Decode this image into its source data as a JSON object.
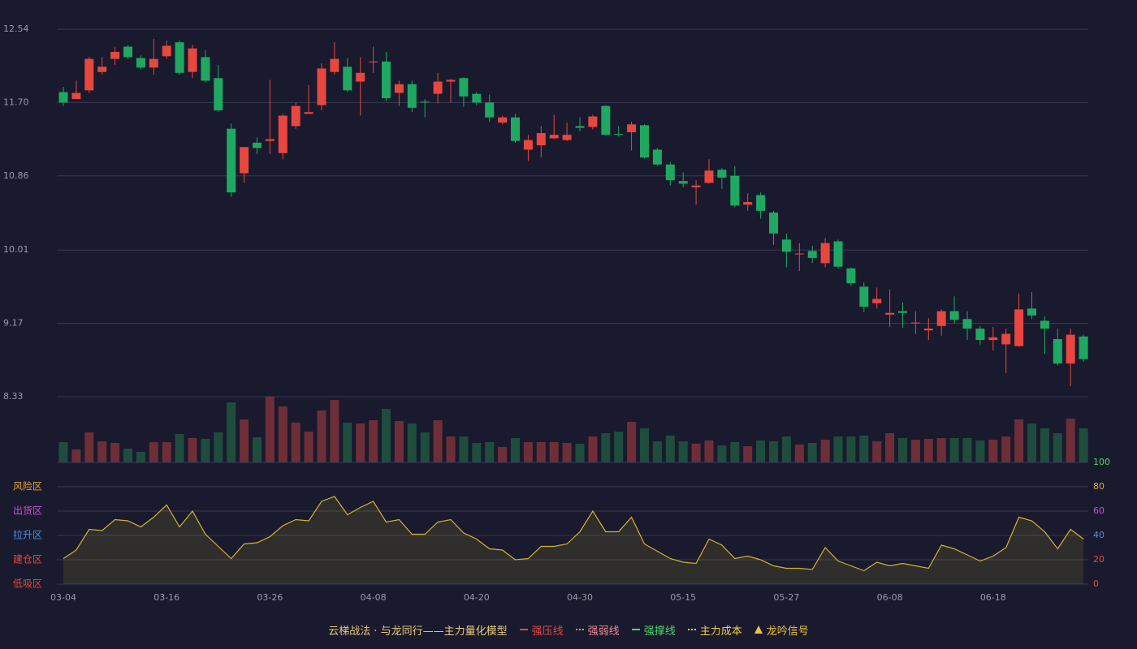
{
  "chart_data": [
    {
      "type": "candlestick",
      "categories": [
        "03-04",
        null,
        null,
        null,
        null,
        null,
        null,
        null,
        "03-16",
        null,
        null,
        null,
        null,
        null,
        null,
        null,
        "03-26",
        null,
        null,
        null,
        null,
        null,
        null,
        null,
        "04-08",
        null,
        null,
        null,
        null,
        null,
        null,
        null,
        "04-20",
        null,
        null,
        null,
        null,
        null,
        null,
        null,
        "04-30",
        null,
        null,
        null,
        null,
        null,
        null,
        null,
        "05-15",
        null,
        null,
        null,
        null,
        null,
        null,
        null,
        "05-27",
        null,
        null,
        null,
        null,
        null,
        null,
        null,
        "06-08",
        null,
        null,
        null,
        null,
        null,
        null,
        null,
        "06-18",
        null,
        null,
        null,
        null,
        null,
        null,
        null
      ],
      "open": [
        11.82,
        11.74,
        11.84,
        12.05,
        12.2,
        12.34,
        12.21,
        12.1,
        12.23,
        12.39,
        12.05,
        12.22,
        11.98,
        11.4,
        10.89,
        11.24,
        11.26,
        11.12,
        11.43,
        11.57,
        11.67,
        12.05,
        12.11,
        11.94,
        12.16,
        12.17,
        11.81,
        11.91,
        11.71,
        11.8,
        11.94,
        11.98,
        11.8,
        11.7,
        11.47,
        11.53,
        11.16,
        11.21,
        11.29,
        11.27,
        11.43,
        11.42,
        11.66,
        11.34,
        11.36,
        11.44,
        11.16,
        10.99,
        10.8,
        10.73,
        10.78,
        10.93,
        10.86,
        10.53,
        10.64,
        10.44,
        10.13,
        9.96,
        10.0,
        9.86,
        10.11,
        9.8,
        9.59,
        9.4,
        9.27,
        9.31,
        9.17,
        9.09,
        9.14,
        9.31,
        9.22,
        9.11,
        8.98,
        8.93,
        8.91,
        9.34,
        9.2,
        8.99,
        8.71,
        9.02
      ],
      "high": [
        11.88,
        11.95,
        12.22,
        12.22,
        12.34,
        12.36,
        12.24,
        12.43,
        12.41,
        12.41,
        12.36,
        12.3,
        12.13,
        11.46,
        11.19,
        11.3,
        11.96,
        11.57,
        11.7,
        11.9,
        12.15,
        12.39,
        12.21,
        12.22,
        12.34,
        12.28,
        11.95,
        11.95,
        11.74,
        12.04,
        11.97,
        11.99,
        11.82,
        11.79,
        11.55,
        11.57,
        11.33,
        11.43,
        11.56,
        11.47,
        11.53,
        11.56,
        11.67,
        11.43,
        11.48,
        11.45,
        11.18,
        11.02,
        10.9,
        10.81,
        11.05,
        10.95,
        10.97,
        10.66,
        10.67,
        10.46,
        10.2,
        10.09,
        10.06,
        10.15,
        10.13,
        9.81,
        9.64,
        9.58,
        9.56,
        9.41,
        9.31,
        9.23,
        9.33,
        9.48,
        9.31,
        9.14,
        9.13,
        9.11,
        9.51,
        9.53,
        9.25,
        9.11,
        9.11,
        9.04
      ],
      "low": [
        11.66,
        11.74,
        11.81,
        12.02,
        12.13,
        12.2,
        12.08,
        12.02,
        12.2,
        12.02,
        11.98,
        11.93,
        11.59,
        10.62,
        10.78,
        11.11,
        11.11,
        11.05,
        11.4,
        11.57,
        11.61,
        12.02,
        11.82,
        11.55,
        12.04,
        11.72,
        11.66,
        11.59,
        11.53,
        11.69,
        11.7,
        11.65,
        11.67,
        11.48,
        11.45,
        11.24,
        11.03,
        11.07,
        11.28,
        11.26,
        11.37,
        11.39,
        11.32,
        11.31,
        11.15,
        11.06,
        10.97,
        10.75,
        10.73,
        10.53,
        10.77,
        10.71,
        10.5,
        10.46,
        10.37,
        10.07,
        9.81,
        9.77,
        9.86,
        9.81,
        9.8,
        9.6,
        9.3,
        9.34,
        9.13,
        9.12,
        9.05,
        8.98,
        9.03,
        9.17,
        8.98,
        8.92,
        8.86,
        8.6,
        8.9,
        9.22,
        8.82,
        8.69,
        8.45,
        8.73
      ],
      "close": [
        11.7,
        11.81,
        12.2,
        12.11,
        12.28,
        12.22,
        12.1,
        12.2,
        12.35,
        12.04,
        12.32,
        11.95,
        11.61,
        10.67,
        11.19,
        11.18,
        11.28,
        11.55,
        11.66,
        11.59,
        12.09,
        12.2,
        11.84,
        12.04,
        12.17,
        11.75,
        11.91,
        11.64,
        11.7,
        11.94,
        11.96,
        11.77,
        11.7,
        11.53,
        11.53,
        11.26,
        11.27,
        11.35,
        11.33,
        11.33,
        11.41,
        11.54,
        11.33,
        11.33,
        11.45,
        11.07,
        10.99,
        10.81,
        10.77,
        10.75,
        10.92,
        10.84,
        10.52,
        10.56,
        10.46,
        10.2,
        9.99,
        9.97,
        9.92,
        10.09,
        9.82,
        9.63,
        9.36,
        9.45,
        9.29,
        9.29,
        9.18,
        9.11,
        9.31,
        9.21,
        9.11,
        8.98,
        9.01,
        9.05,
        9.33,
        9.26,
        9.11,
        8.71,
        9.04,
        8.76
      ],
      "volume": [
        25,
        16,
        37,
        26,
        24,
        17,
        13,
        25,
        25,
        35,
        30,
        29,
        37,
        74,
        53,
        31,
        81,
        69,
        49,
        38,
        64,
        77,
        49,
        48,
        52,
        66,
        51,
        48,
        37,
        52,
        32,
        32,
        24,
        25,
        19,
        30,
        25,
        25,
        25,
        24,
        23,
        32,
        36,
        38,
        50,
        42,
        26,
        33,
        26,
        23,
        27,
        21,
        25,
        20,
        27,
        26,
        32,
        22,
        24,
        28,
        32,
        32,
        33,
        26,
        36,
        30,
        28,
        29,
        30,
        30,
        30,
        27,
        28,
        32,
        53,
        48,
        42,
        36,
        54,
        42
      ],
      "up_color": "#e8473f",
      "down_color": "#1fa862",
      "volume_up_color": "#6e2e38",
      "volume_down_color": "#1e4d3d",
      "ylim": [
        8.33,
        12.54
      ],
      "yticks": [
        {
          "value": 12.54,
          "label": "12.54"
        },
        {
          "value": 11.7,
          "label": "11.70"
        },
        {
          "value": 10.86,
          "label": "10.86"
        },
        {
          "value": 10.01,
          "label": "10.01"
        },
        {
          "value": 9.17,
          "label": "9.17"
        },
        {
          "value": 8.33,
          "label": "8.33"
        }
      ],
      "grid": true
    },
    {
      "type": "line",
      "values": [
        21,
        28,
        45,
        44,
        53,
        52,
        47,
        55,
        65,
        47,
        60,
        41,
        31,
        21,
        33,
        34,
        39,
        48,
        53,
        52,
        68,
        72,
        57,
        63,
        68,
        51,
        53,
        41,
        41,
        51,
        53,
        42,
        37,
        29,
        28,
        20,
        21,
        31,
        31,
        33,
        43,
        60,
        43,
        43,
        55,
        33,
        27,
        21,
        18,
        17,
        37,
        32,
        21,
        23,
        20,
        15,
        13,
        13,
        12,
        30,
        19,
        15,
        11,
        18,
        15,
        17,
        15,
        13,
        32,
        29,
        24,
        19,
        23,
        30,
        55,
        52,
        43,
        29,
        45,
        37
      ],
      "color": "#d4b32e",
      "ylim": [
        0,
        100
      ],
      "yticks": [
        {
          "value": 100,
          "color": "#4cd964"
        },
        {
          "value": 80,
          "color": "#e8a33a"
        },
        {
          "value": 60,
          "color": "#d24fd6"
        },
        {
          "value": 40,
          "color": "#4c8fe8"
        },
        {
          "value": 20,
          "color": "#e8473f"
        },
        {
          "value": 0,
          "color": "#e8473f"
        }
      ],
      "zones": [
        {
          "label": "风险区",
          "value": 80,
          "color": "#e8a33a"
        },
        {
          "label": "出货区",
          "value": 60,
          "color": "#d24fd6"
        },
        {
          "label": "拉升区",
          "value": 40,
          "color": "#4c8fe8"
        },
        {
          "label": "建仓区",
          "value": 20,
          "color": "#e8473f"
        },
        {
          "label": "低吸区",
          "value": 0,
          "color": "#e8473f"
        }
      ],
      "grid": true
    }
  ],
  "legend": {
    "title": "云梯战法 · 与龙同行——主力量化模型",
    "title_color": "#e8c87a",
    "items": [
      {
        "name": "强压线",
        "color": "#e8473f",
        "style": "solid"
      },
      {
        "name": "强弱线",
        "color": "#f08a94",
        "style": "dashed"
      },
      {
        "name": "强撑线",
        "color": "#4cd964",
        "style": "solid"
      },
      {
        "name": "主力成本",
        "color": "#f0d040",
        "style": "dashed"
      },
      {
        "name": "龙吟信号",
        "color": "#f0c040",
        "style": "triangle"
      }
    ]
  }
}
